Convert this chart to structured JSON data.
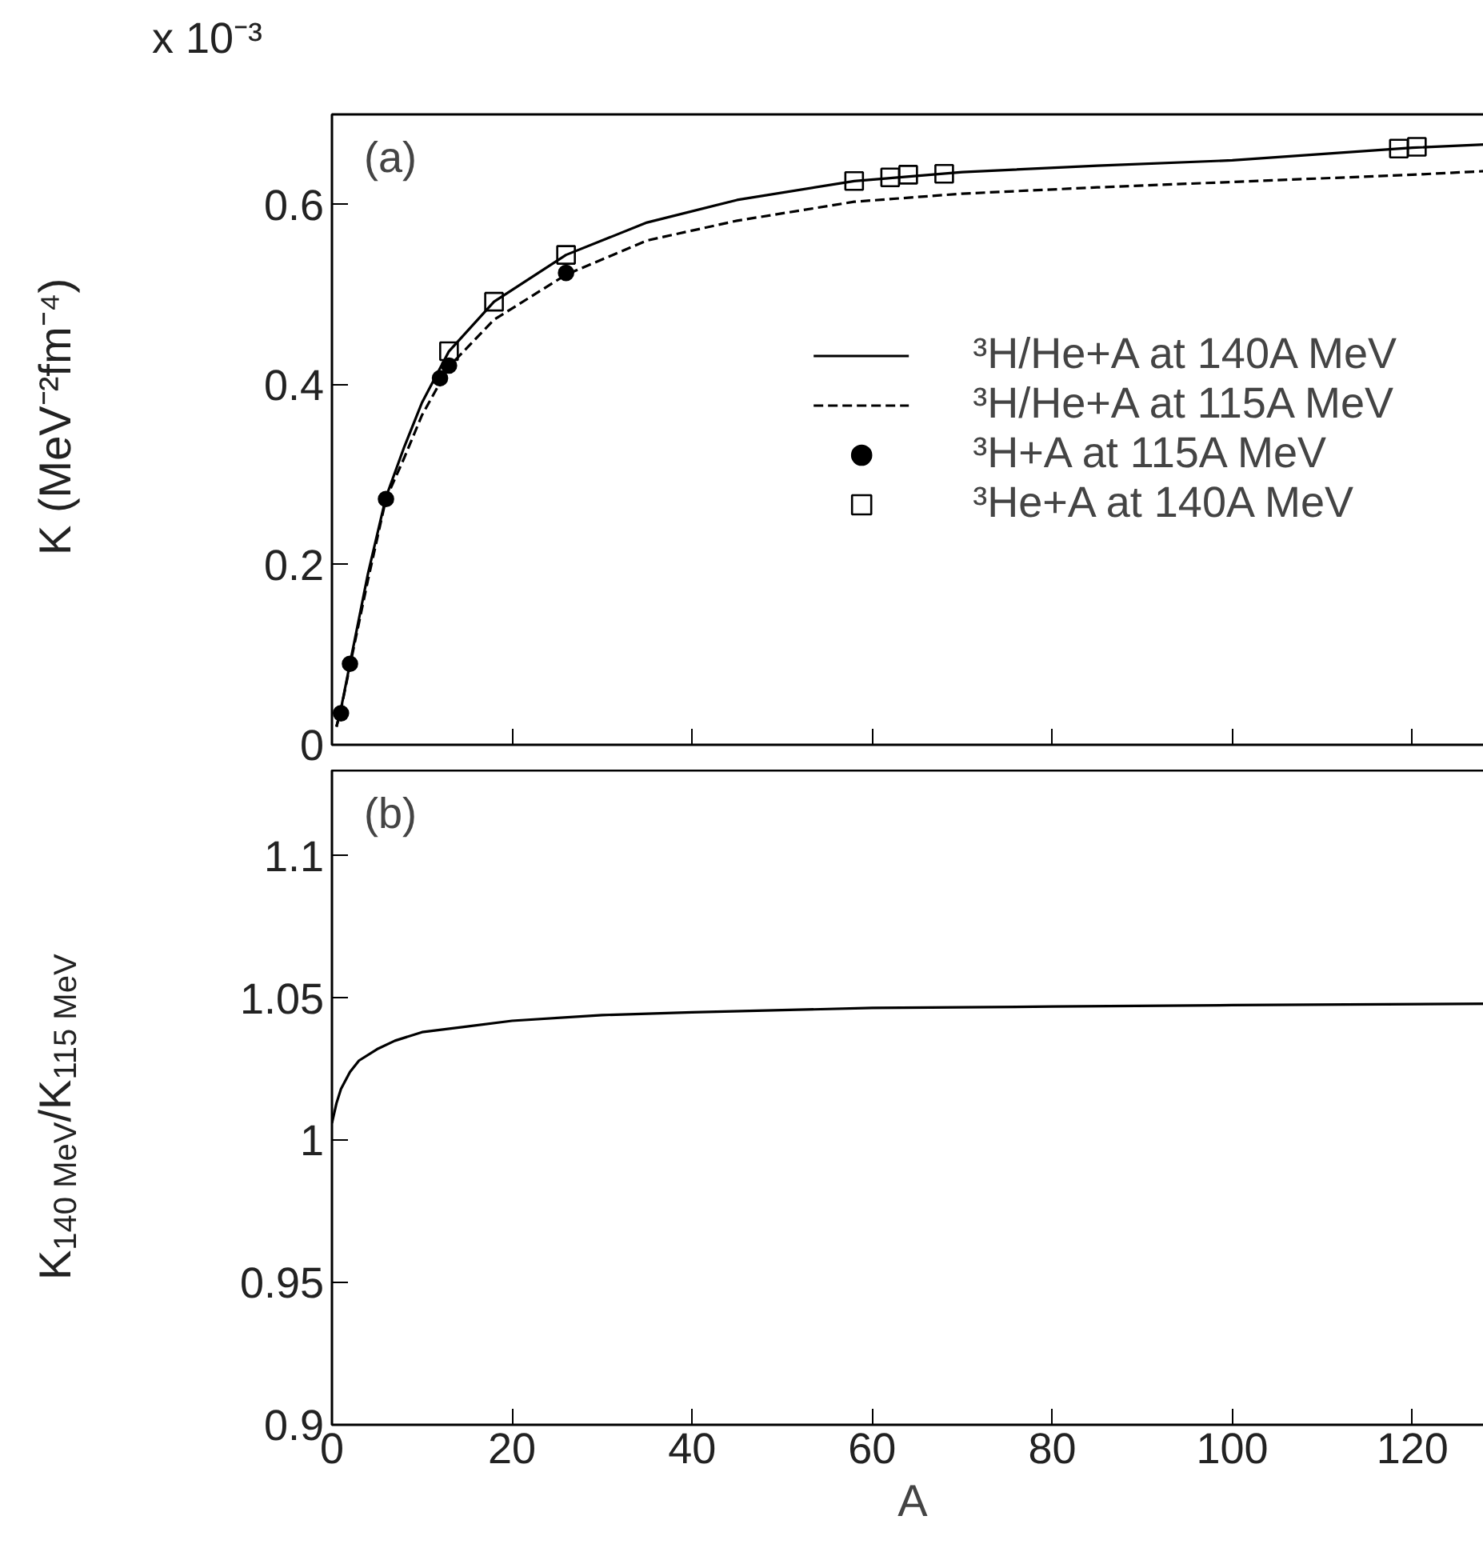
{
  "chart_data": [
    {
      "type": "line",
      "ylabel": "K (MeV⁻²fm⁻⁴)",
      "xlim": [
        0,
        129
      ],
      "xticks": [
        0,
        20,
        40,
        60,
        80,
        100,
        120
      ],
      "ylim": [
        0,
        0.7
      ],
      "yticks": [
        0,
        0.2,
        0.4,
        0.6
      ],
      "tick_labels": "y",
      "grid": false,
      "legend": "right",
      "annotations": [
        "(a)",
        "x 10⁻³"
      ],
      "series": [
        {
          "name": "³H/He+A at 140A MeV",
          "line_style": "solid",
          "color": "#000000",
          "x": [
            0.5,
            1,
            2,
            4,
            6,
            8,
            10,
            13,
            18,
            26,
            35,
            45,
            58,
            70,
            85,
            100,
            120,
            129
          ],
          "values": [
            0.02,
            0.04,
            0.09,
            0.19,
            0.275,
            0.33,
            0.38,
            0.437,
            0.492,
            0.544,
            0.58,
            0.605,
            0.626,
            0.636,
            0.643,
            0.649,
            0.663,
            0.667
          ]
        },
        {
          "name": "³H/He+A at 115A MeV",
          "line_style": "dashed",
          "color": "#000000",
          "x": [
            0.5,
            1,
            2,
            4,
            6,
            8,
            10,
            13,
            18,
            26,
            35,
            45,
            58,
            70,
            85,
            100,
            120,
            128
          ],
          "values": [
            0.02,
            0.039,
            0.088,
            0.183,
            0.273,
            0.318,
            0.366,
            0.42,
            0.472,
            0.522,
            0.56,
            0.582,
            0.603,
            0.612,
            0.619,
            0.625,
            0.633,
            0.637
          ]
        },
        {
          "name": "³H+A at 115A MeV",
          "type": "scatter",
          "marker": "circle",
          "color": "#000000",
          "x": [
            1,
            2,
            6,
            12,
            13,
            26
          ],
          "values": [
            0.035,
            0.09,
            0.273,
            0.407,
            0.421,
            0.524
          ]
        },
        {
          "name": "³He+A at 140A MeV",
          "type": "scatter",
          "marker": "square",
          "color": "#000000",
          "x": [
            13,
            18,
            26,
            58,
            62,
            64,
            68,
            118.5,
            120.5
          ],
          "values": [
            0.437,
            0.492,
            0.544,
            0.626,
            0.63,
            0.633,
            0.634,
            0.662,
            0.664
          ]
        }
      ]
    },
    {
      "type": "line",
      "xlabel": "A",
      "ylabel": "K$_{140 MeV}$/K$_{115 MeV}$",
      "xlim": [
        0,
        129
      ],
      "xticks": [
        0,
        20,
        40,
        60,
        80,
        100,
        120
      ],
      "ylim": [
        0.9,
        1.13
      ],
      "yticks": [
        0.9,
        0.95,
        1,
        1.05,
        1.1
      ],
      "grid": false,
      "annotations": [
        "(b)"
      ],
      "series": [
        {
          "line_style": "solid",
          "color": "#000000",
          "x": [
            0,
            0.5,
            1,
            2,
            3,
            5,
            7,
            10,
            15,
            20,
            30,
            40,
            60,
            80,
            100,
            129
          ],
          "values": [
            1.006,
            1.013,
            1.018,
            1.024,
            1.028,
            1.032,
            1.035,
            1.038,
            1.04,
            1.042,
            1.044,
            1.045,
            1.0465,
            1.047,
            1.0475,
            1.048
          ]
        }
      ]
    }
  ]
}
